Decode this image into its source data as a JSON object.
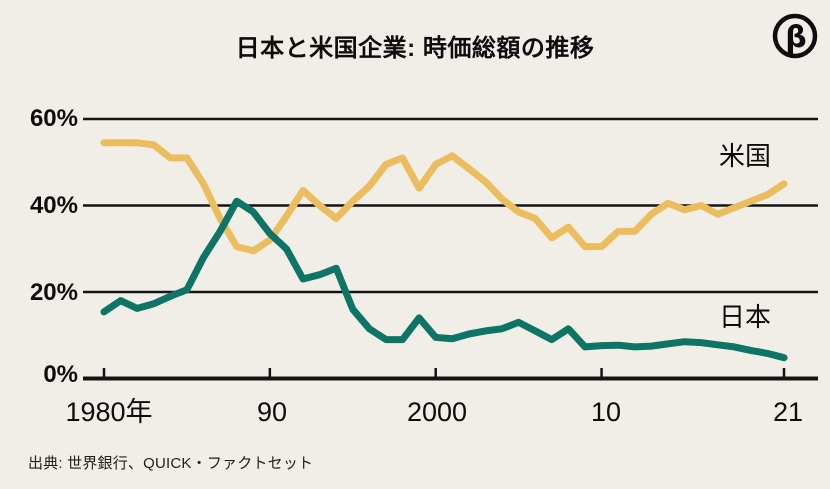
{
  "header": {
    "title": "日本と米国企業: 時価総額の推移",
    "logo_glyph": "β"
  },
  "chart_data": {
    "type": "line",
    "title": "日本と米国企業: 時価総額の推移",
    "xlabel": "",
    "ylabel": "",
    "ylim": [
      0,
      60
    ],
    "grid": "horizontal",
    "axis_color": "#141414",
    "background_color": "#f1eee8",
    "legend_position": "inline-right",
    "x": [
      1980,
      1981,
      1982,
      1983,
      1984,
      1985,
      1986,
      1987,
      1988,
      1989,
      1990,
      1991,
      1992,
      1993,
      1994,
      1995,
      1996,
      1997,
      1998,
      1999,
      2000,
      2001,
      2002,
      2003,
      2004,
      2005,
      2006,
      2007,
      2008,
      2009,
      2010,
      2011,
      2012,
      2013,
      2014,
      2015,
      2016,
      2017,
      2018,
      2019,
      2020,
      2021
    ],
    "series": [
      {
        "name": "米国",
        "color": "#ecbd5f",
        "values": [
          54.5,
          54.5,
          54.5,
          54,
          51,
          51,
          45,
          37,
          30.5,
          29.5,
          32,
          37.5,
          43.5,
          40,
          37,
          41,
          44.5,
          49.5,
          51,
          44,
          49.5,
          51.5,
          48.5,
          45.5,
          41.5,
          38.5,
          37,
          32.5,
          35,
          30.5,
          30.5,
          34,
          34,
          38,
          40.5,
          39,
          40,
          38,
          39.5,
          41,
          42.5,
          45
        ]
      },
      {
        "name": "日本",
        "color": "#0e7466",
        "values": [
          15.4,
          18,
          16.2,
          17.3,
          19,
          20.5,
          28,
          34,
          41,
          38.5,
          33.5,
          30,
          23,
          24,
          25.5,
          16,
          11.5,
          9,
          9,
          14,
          9.5,
          9.2,
          10.3,
          11,
          11.5,
          13,
          11,
          9,
          11.5,
          7.3,
          7.6,
          7.7,
          7.3,
          7.5,
          8,
          8.5,
          8.3,
          7.8,
          7.3,
          6.5,
          5.8,
          4.8
        ]
      }
    ],
    "yticks": [
      {
        "value": 60,
        "label": "60%"
      },
      {
        "value": 40,
        "label": "40%"
      },
      {
        "value": 20,
        "label": "20%"
      },
      {
        "value": 0,
        "label": "0%"
      }
    ],
    "xticks": [
      {
        "year": 1980,
        "label": "1980年"
      },
      {
        "year": 1990,
        "label": "90"
      },
      {
        "year": 2000,
        "label": "2000"
      },
      {
        "year": 2010,
        "label": "10"
      },
      {
        "year": 2021,
        "label": "21"
      }
    ]
  },
  "source": "出典: 世界銀行、QUICK・ファクトセット"
}
